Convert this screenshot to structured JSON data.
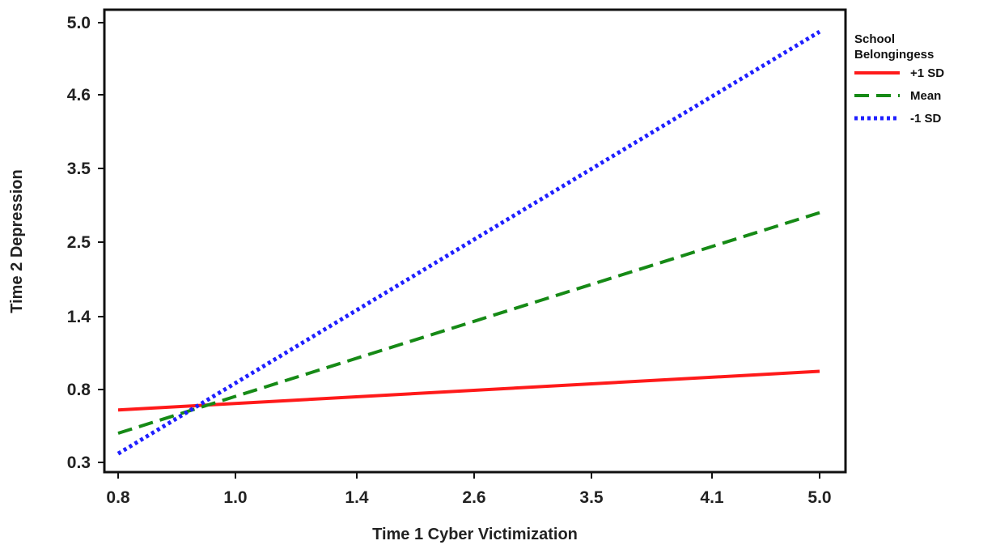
{
  "chart_data": {
    "type": "line",
    "xlabel": "Time 1 Cyber Victimization",
    "ylabel": "Time 2 Depression",
    "x_ticks": [
      "0.8",
      "1.0",
      "1.4",
      "2.6",
      "3.5",
      "4.1",
      "5.0"
    ],
    "y_ticks": [
      "0.3",
      "0.8",
      "1.4",
      "2.5",
      "3.5",
      "4.6",
      "5.0"
    ],
    "x_scale": "categorical-ordinal",
    "y_scale": "categorical-ordinal",
    "xlim": [
      "0.8",
      "5.0"
    ],
    "ylim": [
      "0.3",
      "5.0"
    ],
    "grid": false,
    "legend": {
      "title": "School Belongingess",
      "title_lines": [
        "School",
        "Belongingess"
      ],
      "placement": "right"
    },
    "series": [
      {
        "name": "+1 SD",
        "color": "#ff1a1a",
        "dash": "solid",
        "points": [
          {
            "x": 0.8,
            "y": 0.66
          },
          {
            "x": 5.0,
            "y": 0.95
          }
        ]
      },
      {
        "name": "Mean",
        "color": "#168a16",
        "dash": "dashed",
        "points": [
          {
            "x": 0.8,
            "y": 0.5
          },
          {
            "x": 5.0,
            "y": 2.9
          }
        ]
      },
      {
        "name": "-1 SD",
        "color": "#1f1fff",
        "dash": "dotted",
        "points": [
          {
            "x": 0.8,
            "y": 0.36
          },
          {
            "x": 5.0,
            "y": 4.95
          }
        ]
      }
    ]
  }
}
